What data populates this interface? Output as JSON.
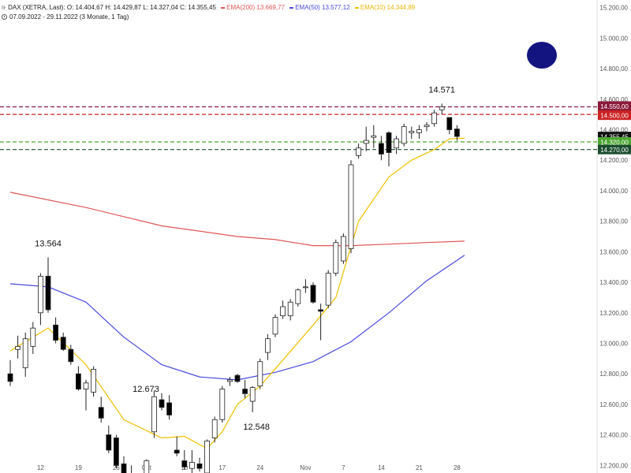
{
  "legend": {
    "symbol": "DAX (XETRA, Last)",
    "ohlc": {
      "o": "O: 14.404,67",
      "h": "H: 14.429,87",
      "l": "L: 14.327,04",
      "c": "C: 14.355,45"
    },
    "ema200": {
      "label": "EMA(200)",
      "value": "13.669,77",
      "color": "#e05555"
    },
    "ema50": {
      "label": "EMA(50)",
      "value": "13.577,12",
      "color": "#4a4ae0"
    },
    "ema10": {
      "label": "EMA(10)",
      "value": "14.344,89",
      "color": "#f0c000"
    },
    "period": "07.09.2022 - 29.11.2022",
    "period_note": "(3 Monate, 1 Tag)"
  },
  "chart_data": {
    "type": "candlestick",
    "y_range": [
      12150,
      15250
    ],
    "y_ticks": [
      {
        "value": 12200,
        "label": "12.200,00"
      },
      {
        "value": 12400,
        "label": "12.400,00"
      },
      {
        "value": 12600,
        "label": "12.600,00"
      },
      {
        "value": 12800,
        "label": "12.800,00"
      },
      {
        "value": 13000,
        "label": "13.000,00"
      },
      {
        "value": 13200,
        "label": "13.200,00"
      },
      {
        "value": 13400,
        "label": "13.400,00"
      },
      {
        "value": 13600,
        "label": "13.600,00"
      },
      {
        "value": 13800,
        "label": "13.800,00"
      },
      {
        "value": 14000,
        "label": "14.000,00"
      },
      {
        "value": 14200,
        "label": "14.200,00"
      },
      {
        "value": 14400,
        "label": "14.400,00"
      },
      {
        "value": 14600,
        "label": "14.600,00"
      },
      {
        "value": 14800,
        "label": "14.800,00"
      },
      {
        "value": 15000,
        "label": "15.000,00"
      },
      {
        "value": 15200,
        "label": "15.200,00"
      }
    ],
    "x_ticks": [
      {
        "index": 4,
        "label": "12"
      },
      {
        "index": 9,
        "label": "19"
      },
      {
        "index": 14,
        "label": "26"
      },
      {
        "index": 18,
        "label": "Okt"
      },
      {
        "index": 23,
        "label": "10"
      },
      {
        "index": 28,
        "label": "17"
      },
      {
        "index": 33,
        "label": "24"
      },
      {
        "index": 39,
        "label": "Nov"
      },
      {
        "index": 44,
        "label": "7"
      },
      {
        "index": 49,
        "label": "14"
      },
      {
        "index": 54,
        "label": "21"
      },
      {
        "index": 59,
        "label": "28"
      }
    ],
    "candles": [
      {
        "o": 12800,
        "h": 12890,
        "l": 12720,
        "c": 12750
      },
      {
        "o": 12960,
        "h": 13050,
        "l": 12900,
        "c": 12980
      },
      {
        "o": 12840,
        "h": 13070,
        "l": 12780,
        "c": 13030
      },
      {
        "o": 12980,
        "h": 13140,
        "l": 12930,
        "c": 13100
      },
      {
        "o": 13200,
        "h": 13460,
        "l": 13120,
        "c": 13440
      },
      {
        "o": 13440,
        "h": 13564,
        "l": 13200,
        "c": 13220
      },
      {
        "o": 13120,
        "h": 13170,
        "l": 13000,
        "c": 13020
      },
      {
        "o": 13040,
        "h": 13070,
        "l": 12950,
        "c": 12960
      },
      {
        "o": 12960,
        "h": 12990,
        "l": 12860,
        "c": 12880
      },
      {
        "o": 12800,
        "h": 12850,
        "l": 12690,
        "c": 12700
      },
      {
        "o": 12700,
        "h": 12760,
        "l": 12560,
        "c": 12740
      },
      {
        "o": 12680,
        "h": 12850,
        "l": 12650,
        "c": 12830
      },
      {
        "o": 12580,
        "h": 12650,
        "l": 12480,
        "c": 12510
      },
      {
        "o": 12400,
        "h": 12460,
        "l": 12280,
        "c": 12300
      },
      {
        "o": 12380,
        "h": 12400,
        "l": 12180,
        "c": 12200
      },
      {
        "o": 12210,
        "h": 12260,
        "l": 12100,
        "c": 12140
      },
      {
        "o": 12140,
        "h": 12200,
        "l": 12050,
        "c": 12080
      },
      {
        "o": 12080,
        "h": 12130,
        "l": 12040,
        "c": 12110
      },
      {
        "o": 12100,
        "h": 12240,
        "l": 12050,
        "c": 12230
      },
      {
        "o": 12420,
        "h": 12690,
        "l": 12380,
        "c": 12650
      },
      {
        "o": 12630,
        "h": 12673,
        "l": 12560,
        "c": 12580
      },
      {
        "o": 12610,
        "h": 12660,
        "l": 12500,
        "c": 12530
      },
      {
        "o": 12300,
        "h": 12390,
        "l": 12260,
        "c": 12280
      },
      {
        "o": 12230,
        "h": 12300,
        "l": 12170,
        "c": 12190
      },
      {
        "o": 12180,
        "h": 12300,
        "l": 12140,
        "c": 12220
      },
      {
        "o": 12210,
        "h": 12250,
        "l": 12160,
        "c": 12180
      },
      {
        "o": 12150,
        "h": 12370,
        "l": 12120,
        "c": 12360
      },
      {
        "o": 12380,
        "h": 12520,
        "l": 12350,
        "c": 12500
      },
      {
        "o": 12500,
        "h": 12720,
        "l": 12480,
        "c": 12700
      },
      {
        "o": 12750,
        "h": 12780,
        "l": 12720,
        "c": 12760
      },
      {
        "o": 12790,
        "h": 12800,
        "l": 12740,
        "c": 12750
      },
      {
        "o": 12700,
        "h": 12760,
        "l": 12640,
        "c": 12670
      },
      {
        "o": 12620,
        "h": 12720,
        "l": 12548,
        "c": 12710
      },
      {
        "o": 12720,
        "h": 12900,
        "l": 12700,
        "c": 12880
      },
      {
        "o": 12940,
        "h": 13060,
        "l": 12890,
        "c": 13030
      },
      {
        "o": 13060,
        "h": 13190,
        "l": 13040,
        "c": 13170
      },
      {
        "o": 13180,
        "h": 13280,
        "l": 13160,
        "c": 13240
      },
      {
        "o": 13180,
        "h": 13290,
        "l": 13150,
        "c": 13270
      },
      {
        "o": 13260,
        "h": 13360,
        "l": 13240,
        "c": 13350
      },
      {
        "o": 13370,
        "h": 13420,
        "l": 13330,
        "c": 13370
      },
      {
        "o": 13380,
        "h": 13400,
        "l": 13260,
        "c": 13270
      },
      {
        "o": 13220,
        "h": 13260,
        "l": 13020,
        "c": 13210
      },
      {
        "o": 13250,
        "h": 13480,
        "l": 13230,
        "c": 13460
      },
      {
        "o": 13460,
        "h": 13680,
        "l": 13440,
        "c": 13660
      },
      {
        "o": 13540,
        "h": 13720,
        "l": 13520,
        "c": 13700
      },
      {
        "o": 13620,
        "h": 14200,
        "l": 13590,
        "c": 14170
      },
      {
        "o": 14230,
        "h": 14310,
        "l": 14210,
        "c": 14280
      },
      {
        "o": 14310,
        "h": 14420,
        "l": 14260,
        "c": 14330
      },
      {
        "o": 14350,
        "h": 14430,
        "l": 14280,
        "c": 14360
      },
      {
        "o": 14310,
        "h": 14360,
        "l": 14200,
        "c": 14240
      },
      {
        "o": 14380,
        "h": 14390,
        "l": 14160,
        "c": 14250
      },
      {
        "o": 14280,
        "h": 14360,
        "l": 14240,
        "c": 14340
      },
      {
        "o": 14310,
        "h": 14440,
        "l": 14290,
        "c": 14420
      },
      {
        "o": 14380,
        "h": 14420,
        "l": 14340,
        "c": 14390
      },
      {
        "o": 14380,
        "h": 14430,
        "l": 14340,
        "c": 14400
      },
      {
        "o": 14420,
        "h": 14450,
        "l": 14390,
        "c": 14430
      },
      {
        "o": 14440,
        "h": 14530,
        "l": 14420,
        "c": 14510
      },
      {
        "o": 14530,
        "h": 14571,
        "l": 14500,
        "c": 14550
      },
      {
        "o": 14480,
        "h": 14480,
        "l": 14370,
        "c": 14400
      },
      {
        "o": 14404.67,
        "h": 14429.87,
        "l": 14327.04,
        "c": 14355.45
      }
    ],
    "ema200": [
      [
        0,
        13990
      ],
      [
        10,
        13890
      ],
      [
        20,
        13770
      ],
      [
        30,
        13700
      ],
      [
        35,
        13680
      ],
      [
        40,
        13640
      ],
      [
        45,
        13640
      ],
      [
        50,
        13650
      ],
      [
        55,
        13660
      ],
      [
        60,
        13669.77
      ]
    ],
    "ema50": [
      [
        0,
        13390
      ],
      [
        5,
        13370
      ],
      [
        10,
        13270
      ],
      [
        15,
        13040
      ],
      [
        20,
        12860
      ],
      [
        25,
        12780
      ],
      [
        30,
        12760
      ],
      [
        35,
        12810
      ],
      [
        40,
        12880
      ],
      [
        45,
        13010
      ],
      [
        50,
        13200
      ],
      [
        55,
        13410
      ],
      [
        60,
        13577.12
      ]
    ],
    "ema10": [
      [
        0,
        12950
      ],
      [
        5,
        13100
      ],
      [
        10,
        12860
      ],
      [
        15,
        12500
      ],
      [
        20,
        12380
      ],
      [
        23,
        12390
      ],
      [
        26,
        12310
      ],
      [
        28,
        12420
      ],
      [
        30,
        12600
      ],
      [
        33,
        12720
      ],
      [
        36,
        12890
      ],
      [
        40,
        13120
      ],
      [
        43,
        13300
      ],
      [
        46,
        13800
      ],
      [
        50,
        14090
      ],
      [
        53,
        14200
      ],
      [
        56,
        14270
      ],
      [
        58,
        14340
      ],
      [
        60,
        14344.89
      ]
    ],
    "hlines": [
      {
        "value": 14550,
        "label": "14.550,00",
        "color": "#8b1a3a"
      },
      {
        "value": 14500,
        "label": "14.500,00",
        "color": "#cc2222"
      },
      {
        "value": 14320,
        "label": "14.320,00",
        "color": "#4ca832"
      },
      {
        "value": 14270,
        "label": "14.270,00",
        "color": "#1b4d2e"
      }
    ],
    "current_price_label": "14.355,45",
    "annotations": [
      {
        "index": 5,
        "value": 13564,
        "label": "13.564",
        "position": "above"
      },
      {
        "index": 20,
        "value": 12673,
        "label": "12.673",
        "position": "left"
      },
      {
        "index": 32,
        "value": 12548,
        "label": "12.548",
        "position": "below"
      },
      {
        "index": 57,
        "value": 14571,
        "label": "14.571",
        "position": "above"
      }
    ],
    "marker": {
      "color": "#141480"
    }
  }
}
